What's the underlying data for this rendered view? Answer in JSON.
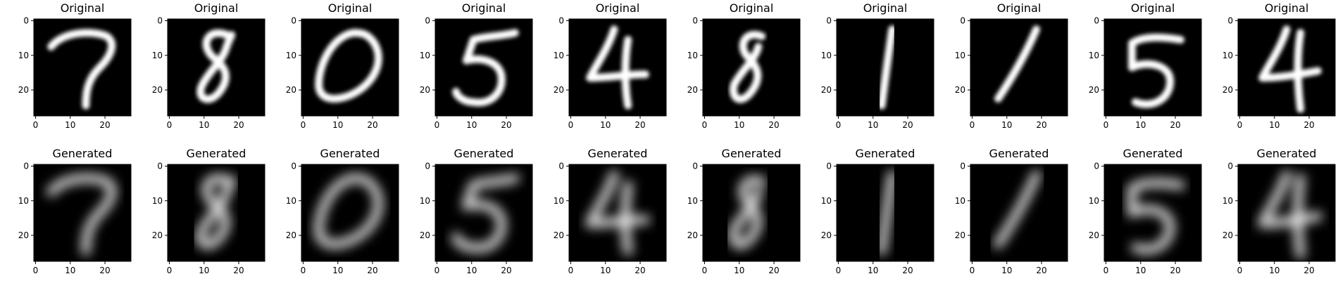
{
  "figure": {
    "rows": [
      {
        "title": "Original",
        "panels": [
          {
            "digit": "7",
            "style": "sharp"
          },
          {
            "digit": "8",
            "style": "sharp"
          },
          {
            "digit": "0",
            "style": "sharp"
          },
          {
            "digit": "5",
            "style": "sharp"
          },
          {
            "digit": "4",
            "style": "sharp"
          },
          {
            "digit": "8",
            "style": "sharp"
          },
          {
            "digit": "1",
            "style": "sharp"
          },
          {
            "digit": "1",
            "style": "sharp"
          },
          {
            "digit": "5",
            "style": "sharp"
          },
          {
            "digit": "4",
            "style": "sharp"
          }
        ]
      },
      {
        "title": "Generated",
        "panels": [
          {
            "digit": "7",
            "style": "blurry"
          },
          {
            "digit": "8",
            "style": "blurry"
          },
          {
            "digit": "0",
            "style": "blurry"
          },
          {
            "digit": "5",
            "style": "blurry"
          },
          {
            "digit": "4",
            "style": "blurry"
          },
          {
            "digit": "8",
            "style": "blurry"
          },
          {
            "digit": "1",
            "style": "blurry"
          },
          {
            "digit": "1",
            "style": "blurry"
          },
          {
            "digit": "5",
            "style": "blurry"
          },
          {
            "digit": "4",
            "style": "blurry"
          }
        ]
      }
    ],
    "axis": {
      "x_ticks": [
        "0",
        "10",
        "20"
      ],
      "y_ticks": [
        "0",
        "10",
        "20"
      ],
      "image_size": 28
    },
    "colors": {
      "background": "#ffffff",
      "image_bg": "#000000",
      "stroke": "#ffffff"
    }
  }
}
